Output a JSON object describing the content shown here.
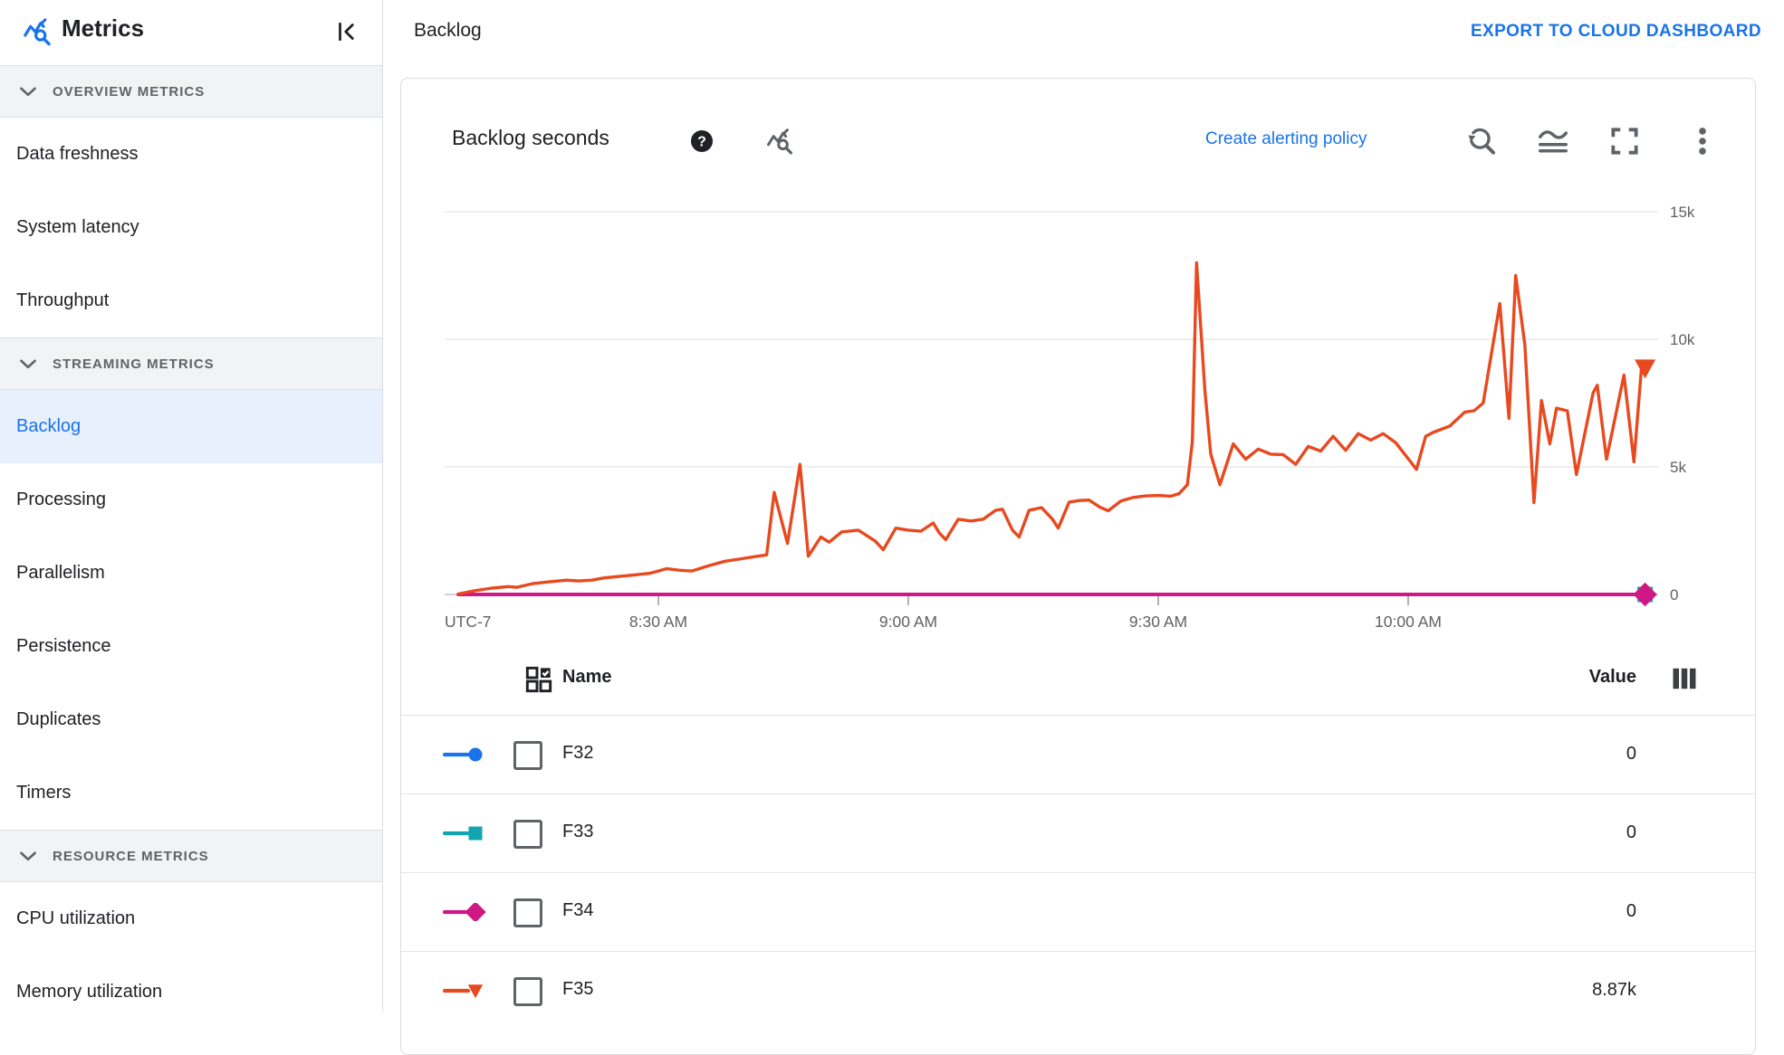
{
  "topbar": {
    "title": "Backlog",
    "export_label": "EXPORT TO CLOUD DASHBOARD"
  },
  "sidebar": {
    "title": "Metrics",
    "sections": [
      {
        "label": "OVERVIEW METRICS",
        "items": [
          {
            "label": "Data freshness"
          },
          {
            "label": "System latency"
          },
          {
            "label": "Throughput"
          }
        ]
      },
      {
        "label": "STREAMING METRICS",
        "items": [
          {
            "label": "Backlog",
            "selected": true
          },
          {
            "label": "Processing"
          },
          {
            "label": "Parallelism"
          },
          {
            "label": "Persistence"
          },
          {
            "label": "Duplicates"
          },
          {
            "label": "Timers"
          }
        ]
      },
      {
        "label": "RESOURCE METRICS",
        "items": [
          {
            "label": "CPU utilization"
          },
          {
            "label": "Memory utilization"
          }
        ]
      }
    ]
  },
  "card": {
    "title": "Backlog seconds",
    "alert_link": "Create alerting policy"
  },
  "table": {
    "name_header": "Name",
    "value_header": "Value",
    "rows": [
      {
        "name": "F32",
        "value": "0"
      },
      {
        "name": "F33",
        "value": "0"
      },
      {
        "name": "F34",
        "value": "0"
      },
      {
        "name": "F35",
        "value": "8.87k"
      }
    ]
  },
  "chart_data": {
    "type": "line",
    "title": "Backlog seconds",
    "x": {
      "timezone_label": "UTC-7",
      "tick_labels": [
        "8:30 AM",
        "9:00 AM",
        "9:30 AM",
        "10:00 AM"
      ],
      "tick_minutes": [
        30,
        60,
        90,
        120
      ],
      "range_minutes": [
        4,
        150
      ]
    },
    "y": {
      "tick_labels": [
        "0",
        "5k",
        "10k",
        "15k"
      ],
      "tick_values": [
        0,
        5000,
        10000,
        15000
      ],
      "range": [
        0,
        15000
      ]
    },
    "grid": true,
    "colors": {
      "grid": "#e8e8e8",
      "axis": "#c4c4c4",
      "tick_text": "#616161"
    },
    "series": [
      {
        "name": "F32",
        "color": "#1a73e8",
        "marker": "circle",
        "current_value": 0,
        "points": [
          [
            6,
            0
          ],
          [
            148,
            0
          ]
        ]
      },
      {
        "name": "F33",
        "color": "#12a4af",
        "marker": "square",
        "current_value": 0,
        "points": [
          [
            6,
            0
          ],
          [
            148,
            0
          ]
        ]
      },
      {
        "name": "F34",
        "color": "#d01884",
        "marker": "diamond",
        "current_value": 0,
        "points": [
          [
            6,
            0
          ],
          [
            148,
            0
          ]
        ]
      },
      {
        "name": "F35",
        "color": "#e8491f",
        "marker": "triangle-down",
        "current_value": 8870,
        "points": [
          [
            6,
            20
          ],
          [
            8,
            150
          ],
          [
            10,
            250
          ],
          [
            12,
            310
          ],
          [
            13,
            280
          ],
          [
            15,
            430
          ],
          [
            17,
            500
          ],
          [
            19,
            560
          ],
          [
            20.5,
            530
          ],
          [
            22,
            560
          ],
          [
            23.5,
            650
          ],
          [
            25,
            700
          ],
          [
            27,
            760
          ],
          [
            29,
            830
          ],
          [
            31,
            1010
          ],
          [
            32.5,
            950
          ],
          [
            34,
            920
          ],
          [
            36,
            1120
          ],
          [
            38,
            1300
          ],
          [
            40,
            1400
          ],
          [
            41.5,
            1480
          ],
          [
            43,
            1550
          ],
          [
            43.9,
            4000
          ],
          [
            45.5,
            2000
          ],
          [
            47,
            5100
          ],
          [
            48,
            1500
          ],
          [
            49.5,
            2250
          ],
          [
            50.5,
            2050
          ],
          [
            52,
            2450
          ],
          [
            54,
            2520
          ],
          [
            56,
            2100
          ],
          [
            57,
            1750
          ],
          [
            58.5,
            2600
          ],
          [
            60,
            2520
          ],
          [
            61.5,
            2480
          ],
          [
            63,
            2800
          ],
          [
            63.7,
            2420
          ],
          [
            64.5,
            2150
          ],
          [
            66,
            2950
          ],
          [
            67.5,
            2880
          ],
          [
            69,
            2950
          ],
          [
            70.5,
            3300
          ],
          [
            71.3,
            3340
          ],
          [
            72.5,
            2520
          ],
          [
            73.3,
            2250
          ],
          [
            74.5,
            3300
          ],
          [
            76,
            3400
          ],
          [
            77.3,
            2950
          ],
          [
            78,
            2600
          ],
          [
            79.3,
            3620
          ],
          [
            80.5,
            3680
          ],
          [
            81.7,
            3700
          ],
          [
            83,
            3420
          ],
          [
            84,
            3280
          ],
          [
            85.5,
            3660
          ],
          [
            87,
            3800
          ],
          [
            88.5,
            3860
          ],
          [
            90,
            3880
          ],
          [
            91.5,
            3850
          ],
          [
            92.5,
            3950
          ],
          [
            93.5,
            4300
          ],
          [
            94.1,
            6000
          ],
          [
            94.6,
            13000
          ],
          [
            95.6,
            8000
          ],
          [
            96.3,
            5500
          ],
          [
            97.4,
            4300
          ],
          [
            99,
            5900
          ],
          [
            100.5,
            5300
          ],
          [
            102,
            5700
          ],
          [
            103.5,
            5500
          ],
          [
            105,
            5480
          ],
          [
            106.5,
            5100
          ],
          [
            108,
            5800
          ],
          [
            109.5,
            5620
          ],
          [
            111,
            6200
          ],
          [
            112.5,
            5650
          ],
          [
            114,
            6300
          ],
          [
            115.5,
            6050
          ],
          [
            117,
            6300
          ],
          [
            118.5,
            5950
          ],
          [
            121,
            4900
          ],
          [
            122.1,
            6200
          ],
          [
            123,
            6350
          ],
          [
            125,
            6600
          ],
          [
            126.8,
            7150
          ],
          [
            127.9,
            7200
          ],
          [
            129,
            7500
          ],
          [
            131,
            11400
          ],
          [
            132.1,
            6900
          ],
          [
            132.9,
            12500
          ],
          [
            134,
            9800
          ],
          [
            135.1,
            3600
          ],
          [
            136,
            7600
          ],
          [
            137,
            5900
          ],
          [
            137.8,
            7300
          ],
          [
            139.1,
            7200
          ],
          [
            140.2,
            4700
          ],
          [
            142.2,
            7900
          ],
          [
            142.7,
            8200
          ],
          [
            143.8,
            5300
          ],
          [
            145.9,
            8600
          ],
          [
            147.1,
            5200
          ],
          [
            148,
            8870
          ]
        ]
      }
    ]
  }
}
